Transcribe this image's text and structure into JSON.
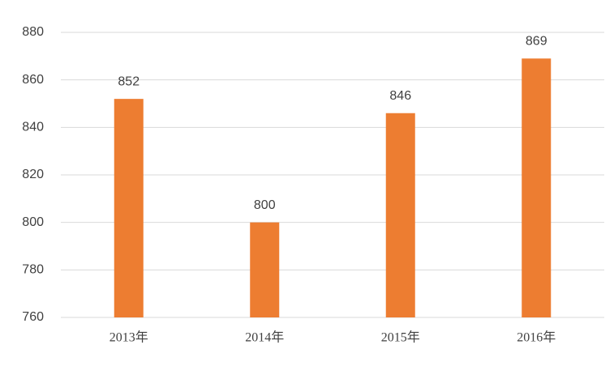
{
  "chart_data": {
    "type": "bar",
    "categories": [
      "2013年",
      "2014年",
      "2015年",
      "2016年"
    ],
    "values": [
      852,
      800,
      846,
      869
    ],
    "color": "#ed7d31",
    "ylim": [
      760,
      880
    ],
    "yticks": [
      760,
      780,
      800,
      820,
      840,
      860,
      880
    ],
    "grid": true,
    "data_labels": true
  }
}
